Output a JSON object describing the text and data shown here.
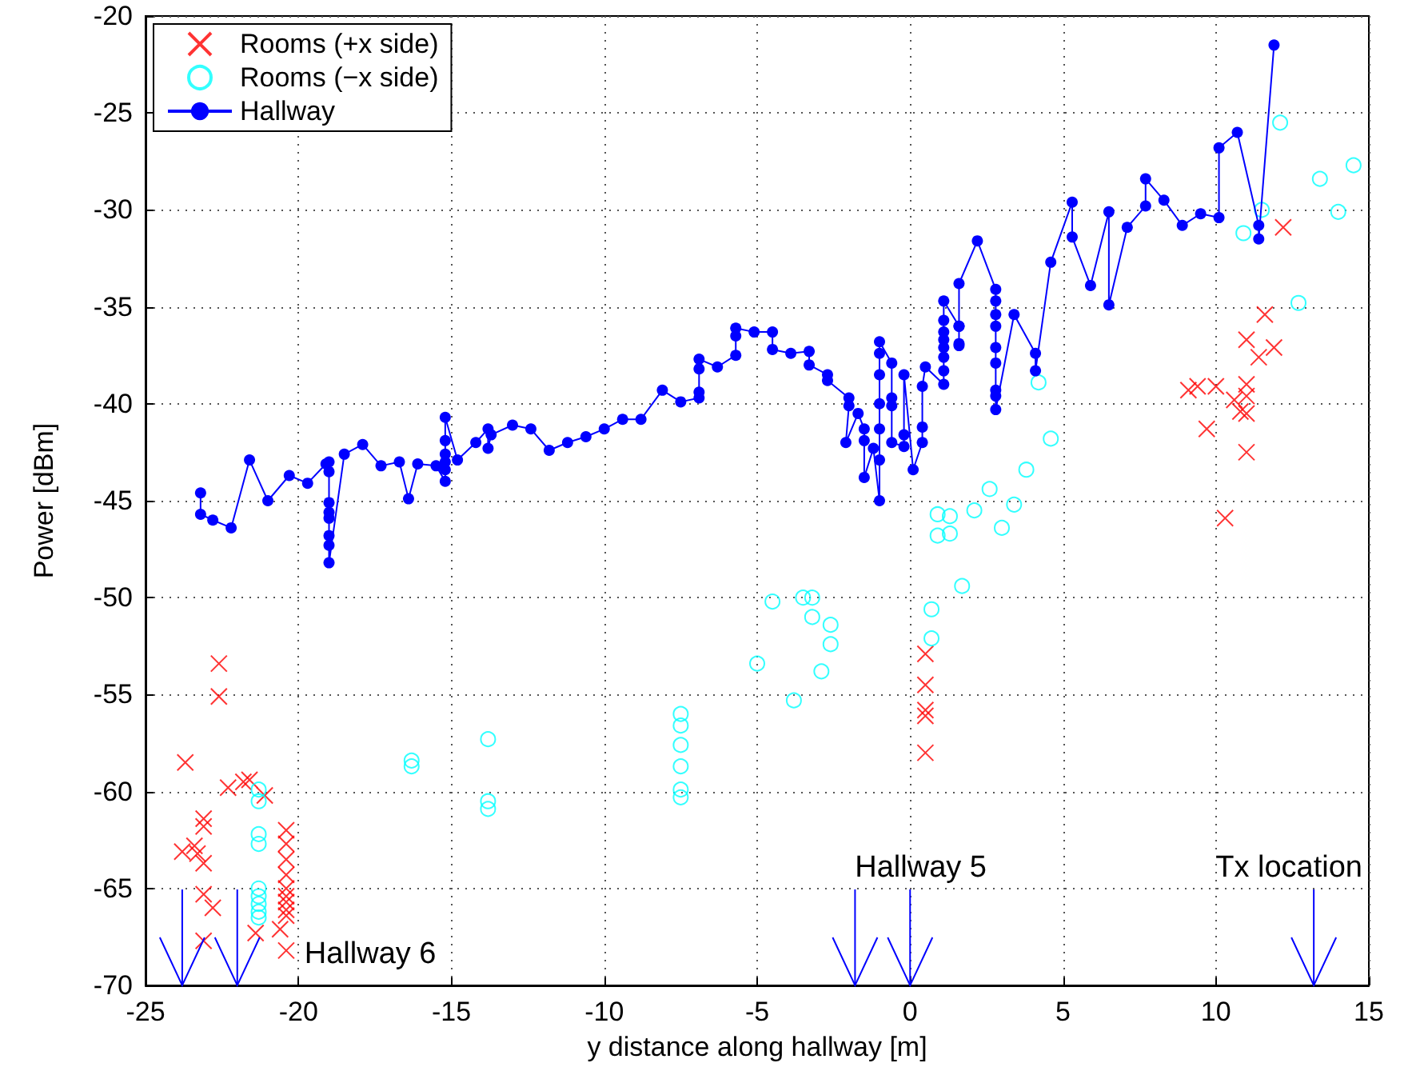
{
  "chart_data": {
    "type": "scatter",
    "xlabel": "y distance along hallway [m]",
    "ylabel": "Power [dBm]",
    "xlim": [
      -25,
      15
    ],
    "xticks": [
      -25,
      -20,
      -15,
      -10,
      -5,
      0,
      5,
      10,
      15
    ],
    "ylim": [
      -70,
      -20
    ],
    "yticks": [
      -70,
      -65,
      -60,
      -55,
      -50,
      -45,
      -40,
      -35,
      -30,
      -25,
      -20
    ],
    "grid": true,
    "legend": "top left",
    "ref_lines": [
      {
        "axis": "x",
        "value": -23.8,
        "color": "#0000ff"
      },
      {
        "axis": "x",
        "value": -22.0,
        "label": "Hallway 6",
        "color": "#0000ff"
      },
      {
        "axis": "x",
        "value": -1.8,
        "color": "#0000ff"
      },
      {
        "axis": "x",
        "value": 0.0,
        "label": "Hallway 5",
        "color": "#0000ff"
      },
      {
        "axis": "x",
        "value": 13.2,
        "label": "Tx location",
        "color": "#0000ff"
      }
    ],
    "series": [
      {
        "name": "Rooms (+x side)",
        "type": "scatter",
        "marker": "cross",
        "color": "#ff0000",
        "x": [
          -22.6,
          -22.6,
          -23.7,
          -22.3,
          -21.8,
          -21.6,
          -21.1,
          -23.1,
          -23.1,
          -23.8,
          -23.4,
          -23.3,
          -23.1,
          -23.1,
          -22.8,
          -23.1,
          -21.4,
          -20.4,
          -20.4,
          -20.4,
          -20.4,
          -20.4,
          -20.4,
          -20.4,
          -20.4,
          -20.4,
          -20.4,
          -20.6,
          0.5,
          0.5,
          0.5,
          0.5,
          0.5,
          12.2,
          11.6,
          11.0,
          11.9,
          11.4,
          9.1,
          9.4,
          10.0,
          10.6,
          11.0,
          11.0,
          10.8,
          11.0,
          9.7,
          11.0,
          10.3
        ],
        "values": [
          -53.4,
          -55.1,
          -58.5,
          -59.8,
          -59.5,
          -59.4,
          -60.2,
          -61.4,
          -61.8,
          -63.1,
          -62.8,
          -63.2,
          -63.7,
          -65.3,
          -66.0,
          -67.7,
          -67.3,
          -62.0,
          -62.7,
          -63.5,
          -64.3,
          -65.0,
          -65.4,
          -65.7,
          -66.1,
          -66.4,
          -68.2,
          -67.1,
          -52.9,
          -54.5,
          -55.8,
          -56.1,
          -58.0,
          -30.9,
          -35.4,
          -36.7,
          -37.1,
          -37.6,
          -39.3,
          -39.1,
          -39.1,
          -39.8,
          -39.0,
          -39.6,
          -40.4,
          -40.5,
          -41.3,
          -42.5,
          -45.9
        ]
      },
      {
        "name": "Rooms (−x side)",
        "type": "scatter",
        "marker": "circle",
        "color": "#00ffff",
        "x": [
          -21.3,
          -21.3,
          -21.3,
          -21.3,
          -21.3,
          -21.3,
          -21.3,
          -21.3,
          -21.3,
          -16.3,
          -16.3,
          -13.8,
          -13.8,
          -13.8,
          -7.5,
          -7.5,
          -7.5,
          -7.5,
          -7.5,
          -7.5,
          -5.0,
          -3.8,
          -4.5,
          -3.5,
          -3.2,
          -3.2,
          -2.6,
          -2.6,
          -2.9,
          0.7,
          0.7,
          0.9,
          1.3,
          0.9,
          1.3,
          1.7,
          2.1,
          2.6,
          3.4,
          3.0,
          3.8,
          4.6,
          4.2,
          12.7,
          10.9,
          11.5,
          12.1,
          13.4,
          14.0,
          14.5
        ],
        "values": [
          -59.9,
          -60.5,
          -62.2,
          -62.7,
          -65.0,
          -65.4,
          -65.8,
          -66.2,
          -66.5,
          -58.4,
          -58.7,
          -57.3,
          -60.5,
          -60.9,
          -56.0,
          -56.6,
          -57.6,
          -58.7,
          -59.9,
          -60.3,
          -53.4,
          -55.3,
          -50.2,
          -50.0,
          -50.0,
          -51.0,
          -51.4,
          -52.4,
          -53.8,
          -50.6,
          -52.1,
          -45.7,
          -45.8,
          -46.8,
          -46.7,
          -49.4,
          -45.5,
          -44.4,
          -45.2,
          -46.4,
          -43.4,
          -41.8,
          -38.9,
          -34.8,
          -31.2,
          -30.0,
          -25.5,
          -28.4,
          -30.1,
          -27.7
        ]
      },
      {
        "name": "Hallway",
        "type": "line",
        "marker": "circle",
        "line_style": "solid",
        "color": "#0000ff",
        "x": [
          -23.2,
          -23.2,
          -22.8,
          -22.2,
          -21.6,
          -21.0,
          -20.3,
          -19.7,
          -19.1,
          -19.0,
          -19.0,
          -19.0,
          -19.0,
          -19.0,
          -19.0,
          -19.0,
          -19.0,
          -18.5,
          -17.9,
          -17.3,
          -16.7,
          -16.4,
          -16.1,
          -15.5,
          -15.2,
          -15.2,
          -15.2,
          -15.2,
          -15.2,
          -15.2,
          -14.8,
          -14.2,
          -13.8,
          -13.8,
          -13.7,
          -13.0,
          -12.4,
          -11.8,
          -11.2,
          -10.6,
          -10.0,
          -9.4,
          -8.8,
          -8.1,
          -7.5,
          -6.9,
          -6.9,
          -6.9,
          -6.9,
          -6.3,
          -5.7,
          -5.7,
          -5.7,
          -5.1,
          -4.5,
          -4.5,
          -3.9,
          -3.3,
          -3.3,
          -2.7,
          -2.7,
          -2.0,
          -2.0,
          -2.1,
          -1.7,
          -1.5,
          -1.5,
          -1.5,
          -1.2,
          -1.0,
          -1.0,
          -1.0,
          -1.0,
          -1.0,
          -1.0,
          -1.0,
          -0.6,
          -0.6,
          -0.6,
          -0.6,
          -0.2,
          -0.2,
          -0.2,
          0.1,
          0.4,
          0.4,
          0.4,
          0.5,
          1.1,
          1.1,
          1.1,
          1.1,
          1.1,
          1.1,
          1.1,
          1.1,
          1.6,
          1.6,
          1.6,
          1.6,
          1.6,
          2.2,
          2.8,
          2.8,
          2.8,
          2.8,
          2.8,
          2.8,
          2.8,
          2.8,
          2.8,
          3.4,
          4.1,
          4.1,
          4.6,
          5.3,
          5.3,
          5.9,
          6.5,
          6.5,
          7.1,
          7.7,
          7.7,
          8.3,
          8.9,
          9.5,
          10.1,
          10.1,
          10.7,
          11.4,
          11.4,
          11.9
        ],
        "values": [
          -44.6,
          -45.7,
          -46.0,
          -46.4,
          -42.9,
          -45.0,
          -43.7,
          -44.1,
          -43.1,
          -43.0,
          -43.5,
          -45.1,
          -45.6,
          -45.9,
          -46.8,
          -47.3,
          -48.2,
          -42.6,
          -42.1,
          -43.2,
          -43.0,
          -44.9,
          -43.1,
          -43.2,
          -44.0,
          -43.4,
          -43.0,
          -42.6,
          -41.9,
          -40.7,
          -42.9,
          -42.0,
          -41.3,
          -42.3,
          -41.6,
          -41.1,
          -41.3,
          -42.4,
          -42.0,
          -41.7,
          -41.3,
          -40.8,
          -40.8,
          -39.3,
          -39.9,
          -39.7,
          -39.4,
          -38.2,
          -37.7,
          -38.1,
          -37.5,
          -36.5,
          -36.1,
          -36.3,
          -36.3,
          -37.2,
          -37.4,
          -37.3,
          -38.0,
          -38.5,
          -38.8,
          -39.7,
          -40.1,
          -42.0,
          -40.5,
          -41.3,
          -41.9,
          -43.8,
          -42.3,
          -45.0,
          -42.9,
          -41.3,
          -40.0,
          -38.5,
          -37.4,
          -36.8,
          -37.9,
          -39.7,
          -40.1,
          -42.0,
          -42.2,
          -41.6,
          -38.5,
          -43.4,
          -42.0,
          -41.2,
          -39.1,
          -38.1,
          -39.0,
          -38.3,
          -37.6,
          -37.1,
          -36.7,
          -36.3,
          -35.7,
          -34.7,
          -36.0,
          -36.9,
          -37.0,
          -36.0,
          -33.8,
          -31.6,
          -34.1,
          -34.7,
          -35.4,
          -36.0,
          -37.1,
          -37.9,
          -39.3,
          -39.6,
          -40.3,
          -35.4,
          -37.4,
          -38.3,
          -32.7,
          -29.6,
          -31.4,
          -33.9,
          -30.1,
          -34.9,
          -30.9,
          -29.8,
          -28.4,
          -29.5,
          -30.8,
          -30.2,
          -30.4,
          -26.8,
          -26.0,
          -30.8,
          -31.5,
          -21.5
        ]
      }
    ]
  }
}
